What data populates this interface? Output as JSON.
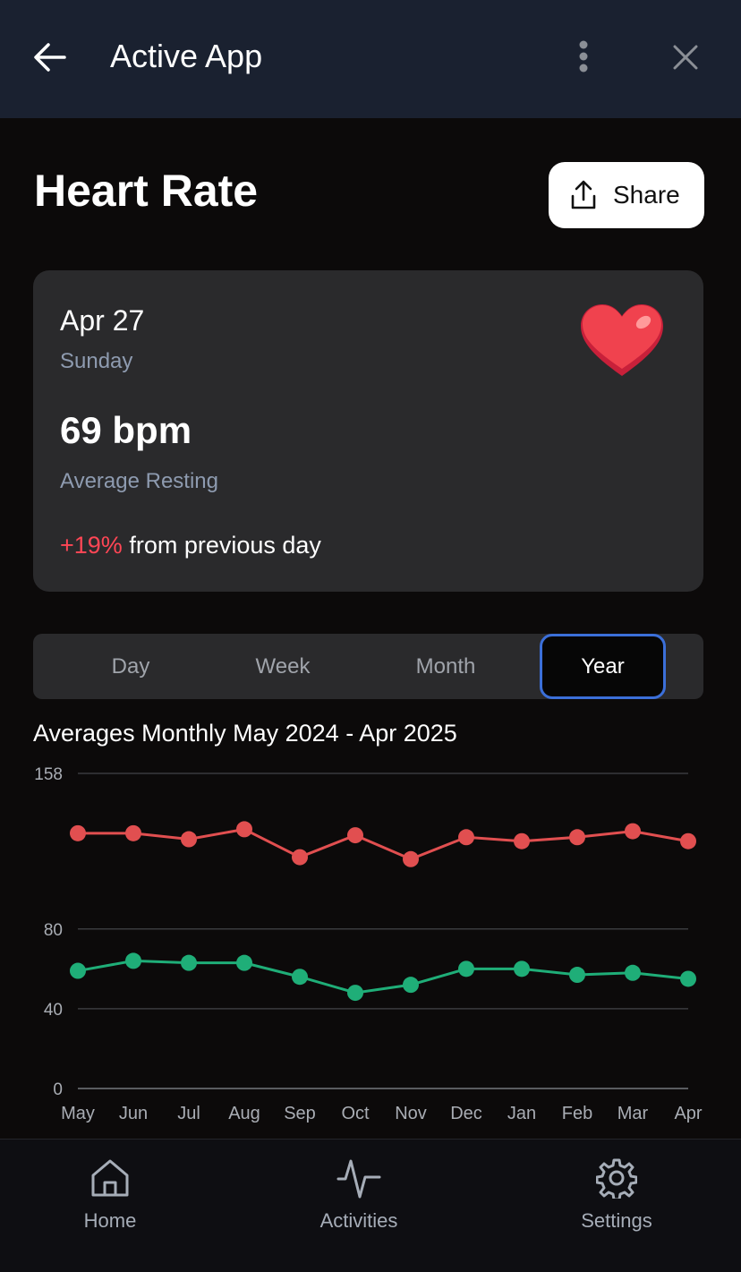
{
  "header": {
    "title": "Active App"
  },
  "page": {
    "title": "Heart Rate",
    "share": "Share"
  },
  "summary": {
    "date": "Apr 27",
    "weekday": "Sunday",
    "value": "69 bpm",
    "label": "Average Resting",
    "change": "+19%",
    "change_text": "from previous day"
  },
  "tabs": {
    "items": [
      "Day",
      "Week",
      "Month",
      "Year"
    ],
    "selected": 3
  },
  "chart_data": {
    "type": "line",
    "title": "Averages Monthly May 2024 - Apr 2025",
    "categories": [
      "May",
      "Jun",
      "Jul",
      "Aug",
      "Sep",
      "Oct",
      "Nov",
      "Dec",
      "Jan",
      "Feb",
      "Mar",
      "Apr"
    ],
    "series": [
      {
        "color": "#e14f50",
        "values": [
          128,
          128,
          125,
          130,
          116,
          127,
          115,
          126,
          124,
          126,
          129,
          124
        ]
      },
      {
        "color": "#1fae78",
        "values": [
          59,
          64,
          63,
          63,
          56,
          48,
          52,
          60,
          60,
          57,
          58,
          55
        ]
      }
    ],
    "ylim": [
      0,
      158
    ],
    "yticks": [
      0,
      40,
      80,
      158
    ],
    "grid": true
  },
  "nav": {
    "items": [
      "Home",
      "Activities",
      "Settings"
    ]
  }
}
